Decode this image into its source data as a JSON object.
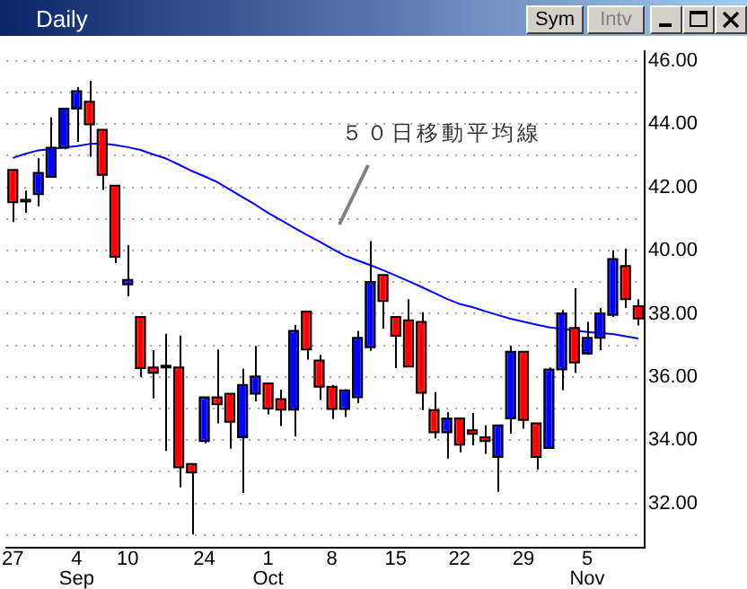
{
  "chart_data": {
    "type": "candlestick",
    "title": "Daily",
    "categories": [
      "27",
      null,
      null,
      null,
      null,
      "4\nSep",
      null,
      null,
      null,
      "10",
      null,
      null,
      null,
      null,
      null,
      "24",
      null,
      null,
      null,
      null,
      "1\nOct",
      null,
      null,
      null,
      null,
      "8",
      null,
      null,
      null,
      null,
      "15",
      null,
      null,
      null,
      null,
      "22",
      null,
      null,
      null,
      null,
      "29",
      null,
      null,
      null,
      null,
      "5\nNov",
      null,
      null,
      null,
      null
    ],
    "ohlc": [
      [
        42.55,
        42.55,
        40.9,
        41.53
      ],
      [
        41.55,
        41.9,
        41.19,
        41.55
      ],
      [
        41.78,
        42.92,
        41.4,
        42.46
      ],
      [
        42.33,
        44.21,
        42.33,
        43.25
      ],
      [
        43.25,
        44.49,
        43.2,
        44.49
      ],
      [
        44.49,
        45.17,
        43.44,
        45.04
      ],
      [
        44.71,
        45.37,
        42.97,
        43.99
      ],
      [
        43.82,
        43.82,
        41.92,
        42.39
      ],
      [
        42.05,
        42.05,
        39.6,
        39.8
      ],
      [
        38.93,
        40.17,
        38.55,
        39.07
      ],
      [
        37.9,
        37.9,
        36.0,
        36.28
      ],
      [
        36.3,
        36.85,
        35.32,
        36.13
      ],
      [
        36.3,
        37.37,
        33.66,
        36.3
      ],
      [
        36.3,
        37.31,
        32.51,
        33.14
      ],
      [
        33.25,
        33.25,
        31.02,
        32.98
      ],
      [
        33.97,
        35.36,
        33.9,
        35.36
      ],
      [
        35.36,
        36.87,
        34.53,
        35.14
      ],
      [
        35.47,
        35.47,
        33.73,
        34.58
      ],
      [
        34.09,
        36.26,
        32.33,
        35.75
      ],
      [
        35.47,
        36.98,
        35.23,
        36.02
      ],
      [
        35.8,
        35.8,
        34.82,
        35.0
      ],
      [
        35.3,
        35.6,
        34.45,
        34.97
      ],
      [
        34.97,
        37.64,
        34.12,
        37.46
      ],
      [
        38.07,
        38.07,
        36.55,
        36.87
      ],
      [
        36.52,
        36.7,
        35.28,
        35.69
      ],
      [
        35.69,
        35.75,
        34.67,
        34.99
      ],
      [
        34.99,
        35.61,
        34.73,
        35.58
      ],
      [
        35.36,
        37.46,
        35.17,
        37.24
      ],
      [
        36.94,
        40.3,
        36.83,
        39.01
      ],
      [
        39.23,
        39.23,
        37.53,
        38.4
      ],
      [
        37.9,
        37.9,
        36.28,
        37.3
      ],
      [
        37.79,
        38.46,
        36.33,
        36.33
      ],
      [
        37.74,
        38.05,
        34.95,
        35.5
      ],
      [
        34.95,
        35.52,
        34.06,
        34.25
      ],
      [
        34.25,
        34.89,
        33.42,
        34.69
      ],
      [
        34.69,
        34.69,
        33.62,
        33.86
      ],
      [
        34.31,
        34.86,
        33.84,
        34.2
      ],
      [
        34.09,
        34.47,
        33.57,
        33.97
      ],
      [
        33.47,
        34.47,
        32.37,
        34.47
      ],
      [
        34.69,
        36.98,
        34.21,
        36.8
      ],
      [
        36.8,
        36.8,
        34.36,
        34.64
      ],
      [
        34.53,
        34.53,
        33.07,
        33.47
      ],
      [
        33.75,
        36.3,
        33.75,
        36.24
      ],
      [
        36.24,
        38.12,
        35.58,
        38.01
      ],
      [
        37.55,
        38.81,
        36.13,
        36.46
      ],
      [
        36.74,
        37.74,
        36.7,
        37.24
      ],
      [
        37.24,
        38.18,
        36.85,
        38.01
      ],
      [
        37.96,
        40.01,
        37.9,
        39.73
      ],
      [
        39.51,
        40.06,
        38.18,
        38.46
      ],
      [
        38.24,
        38.46,
        37.63,
        37.85
      ]
    ],
    "colors": [
      "#ff0000",
      "#000000",
      "#0000ff",
      "#0000ff",
      "#0000ff",
      "#0000ff",
      "#ff0000",
      "#ff0000",
      "#ff0000",
      "#0000ff",
      "#ff0000",
      "#ff0000",
      "#000000",
      "#ff0000",
      "#ff0000",
      "#0000ff",
      "#ff0000",
      "#ff0000",
      "#0000ff",
      "#0000ff",
      "#ff0000",
      "#ff0000",
      "#0000ff",
      "#ff0000",
      "#ff0000",
      "#ff0000",
      "#0000ff",
      "#0000ff",
      "#0000ff",
      "#ff0000",
      "#ff0000",
      "#ff0000",
      "#ff0000",
      "#ff0000",
      "#0000ff",
      "#ff0000",
      "#ff0000",
      "#ff0000",
      "#0000ff",
      "#0000ff",
      "#ff0000",
      "#ff0000",
      "#0000ff",
      "#0000ff",
      "#ff0000",
      "#0000ff",
      "#0000ff",
      "#0000ff",
      "#ff0000",
      "#ff0000"
    ],
    "series": [
      {
        "type": "line",
        "color": "#0000ff",
        "values": [
          42.93,
          43.06,
          43.17,
          43.21,
          43.26,
          43.3,
          43.37,
          43.39,
          43.34,
          43.27,
          43.18,
          43.04,
          42.91,
          42.72,
          42.52,
          42.35,
          42.17,
          41.93,
          41.69,
          41.45,
          41.19,
          40.96,
          40.73,
          40.5,
          40.29,
          40.06,
          39.84,
          39.69,
          39.54,
          39.38,
          39.21,
          39.03,
          38.85,
          38.66,
          38.47,
          38.31,
          38.21,
          38.08,
          37.96,
          37.84,
          37.75,
          37.66,
          37.57,
          37.52,
          37.47,
          37.42,
          37.39,
          37.36,
          37.29,
          37.22
        ]
      }
    ],
    "ylim": [
      30.6,
      46.3
    ],
    "yticks": [
      {
        "value": 31,
        "label": null
      },
      {
        "value": 32,
        "label": "32.00"
      },
      {
        "value": 33,
        "label": null
      },
      {
        "value": 34,
        "label": "34.00"
      },
      {
        "value": 35,
        "label": null
      },
      {
        "value": 36,
        "label": "36.00"
      },
      {
        "value": 37,
        "label": null
      },
      {
        "value": 38,
        "label": "38.00"
      },
      {
        "value": 39,
        "label": null
      },
      {
        "value": 40,
        "label": "40.00"
      },
      {
        "value": 41,
        "label": null
      },
      {
        "value": 42,
        "label": "42.00"
      },
      {
        "value": 43,
        "label": null
      },
      {
        "value": 44,
        "label": "44.00"
      },
      {
        "value": 45,
        "label": null
      },
      {
        "value": 46,
        "label": "46.00"
      }
    ],
    "grid": "y",
    "legend": false,
    "annotations": [
      "５０日移動平均線",
      "Sym",
      "Intv"
    ]
  }
}
